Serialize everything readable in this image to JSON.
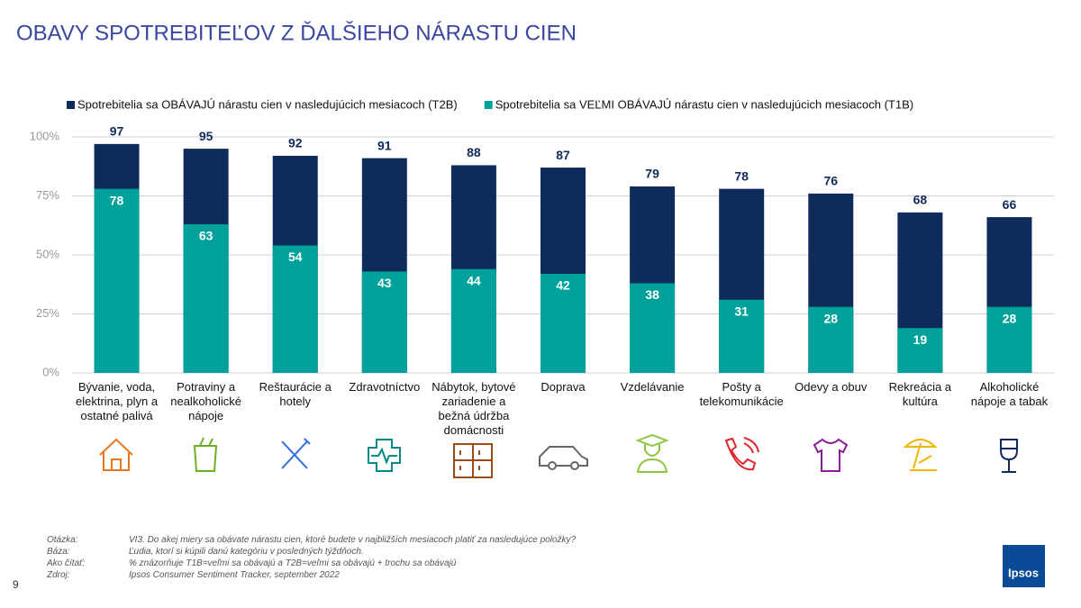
{
  "chart_data": {
    "type": "overlap_bar",
    "title": "OBAVY SPOTREBITEĽOV Z ĎALŠIEHO NÁRASTU CIEN",
    "categories": [
      "Bývanie, voda, elektrina, plyn a ostatné palivá",
      "Potraviny a nealkoholické nápoje",
      "Reštaurácie a hotely",
      "Zdravotníctvo",
      "Nábytok, bytové zariadenie a bežná údržba domácnosti",
      "Doprava",
      "Vzdelávanie",
      "Pošty a telekomunikácie",
      "Odevy a obuv",
      "Rekreácia a kultúra",
      "Alkoholické nápoje a tabak"
    ],
    "series": [
      {
        "name": "Spotrebitelia sa OBÁVAJÚ nárastu cien v nasledujúcich mesiacoch (T2B)",
        "color": "#0f2b5b",
        "values": [
          97,
          95,
          92,
          91,
          88,
          87,
          79,
          78,
          76,
          68,
          66
        ]
      },
      {
        "name": "Spotrebitelia sa VEĽMI OBÁVAJÚ nárastu cien v nasledujúcich mesiacoch (T1B)",
        "color": "#00a19a",
        "values": [
          78,
          63,
          54,
          43,
          44,
          42,
          38,
          31,
          28,
          19,
          28
        ]
      }
    ],
    "ylim": [
      0,
      100
    ],
    "yticks": [
      {
        "value": 0,
        "label": "0%"
      },
      {
        "value": 25,
        "label": "25%"
      },
      {
        "value": 50,
        "label": "50%"
      },
      {
        "value": 75,
        "label": "75%"
      },
      {
        "value": 100,
        "label": "100%"
      }
    ],
    "grid": true
  },
  "footnotes": [
    {
      "label": "Otázka:",
      "text": "VI3. Do akej miery sa obávate nárastu cien, ktoré budete v najbližších mesiacoch platiť za nasledujúce položky?"
    },
    {
      "label": "Báza:",
      "text": "Ľudia, ktorí si kúpili danú kategóriu v posledných týždňoch."
    },
    {
      "label": "Ako čítať:",
      "text": "% znázorňuje T1B=veľmi sa obávajú a T2B=veľmi sa obávajú + trochu sa obávajú"
    },
    {
      "label": "Zdroj:",
      "text": "Ipsos Consumer Sentiment Tracker, september 2022"
    }
  ],
  "page_number": "9",
  "logo": "Ipsos"
}
